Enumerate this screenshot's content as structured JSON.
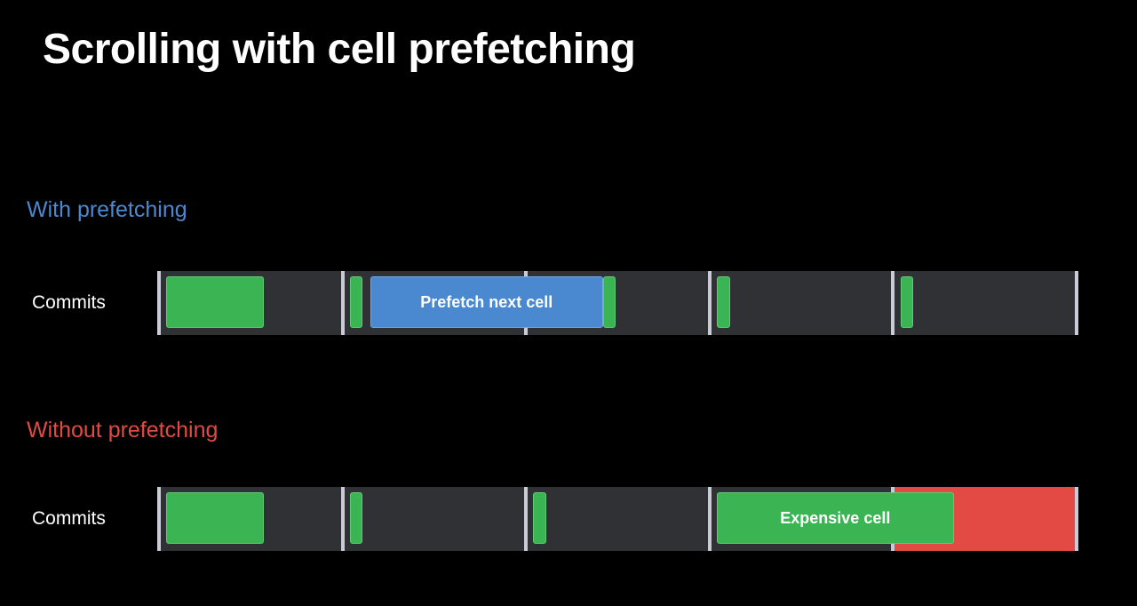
{
  "title": "Scrolling with cell prefetching",
  "colors": {
    "background": "#000000",
    "track": "#303134",
    "divider": "#c9ccd6",
    "commit_green": "#3bb554",
    "commit_green_border": "#62c977",
    "prefetch_blue": "#4a88d0",
    "prefetch_blue_border": "#74a6e0",
    "overrun_red": "#e34a44",
    "with_heading": "#4a88d0",
    "without_heading": "#e34a44"
  },
  "frame_count": 5,
  "sections": [
    {
      "heading": "With prefetching",
      "heading_color": "#4a88d0",
      "row_label": "Commits",
      "overrun_frames": [],
      "blocks": [
        {
          "name": "commit-block",
          "kind": "commit",
          "frame_start": 0.04,
          "frame_len": 0.53,
          "label": ""
        },
        {
          "name": "commit-block",
          "kind": "commit",
          "frame_start": 1.04,
          "frame_len": 0.07,
          "label": ""
        },
        {
          "name": "prefetch-block",
          "kind": "prefetch",
          "frame_start": 1.15,
          "frame_len": 1.27,
          "label": "Prefetch next cell"
        },
        {
          "name": "commit-block",
          "kind": "commit",
          "frame_start": 2.42,
          "frame_len": 0.07,
          "label": ""
        },
        {
          "name": "commit-block",
          "kind": "commit",
          "frame_start": 3.04,
          "frame_len": 0.07,
          "label": ""
        },
        {
          "name": "commit-block",
          "kind": "commit",
          "frame_start": 4.04,
          "frame_len": 0.07,
          "label": ""
        }
      ]
    },
    {
      "heading": "Without prefetching",
      "heading_color": "#e34a44",
      "row_label": "Commits",
      "overrun_frames": [
        4
      ],
      "blocks": [
        {
          "name": "commit-block",
          "kind": "commit",
          "frame_start": 0.04,
          "frame_len": 0.53,
          "label": ""
        },
        {
          "name": "commit-block",
          "kind": "commit",
          "frame_start": 1.04,
          "frame_len": 0.07,
          "label": ""
        },
        {
          "name": "commit-block",
          "kind": "commit",
          "frame_start": 2.04,
          "frame_len": 0.07,
          "label": ""
        },
        {
          "name": "expensive-cell-block",
          "kind": "commit",
          "frame_start": 3.04,
          "frame_len": 1.29,
          "label": "Expensive cell"
        }
      ]
    }
  ]
}
